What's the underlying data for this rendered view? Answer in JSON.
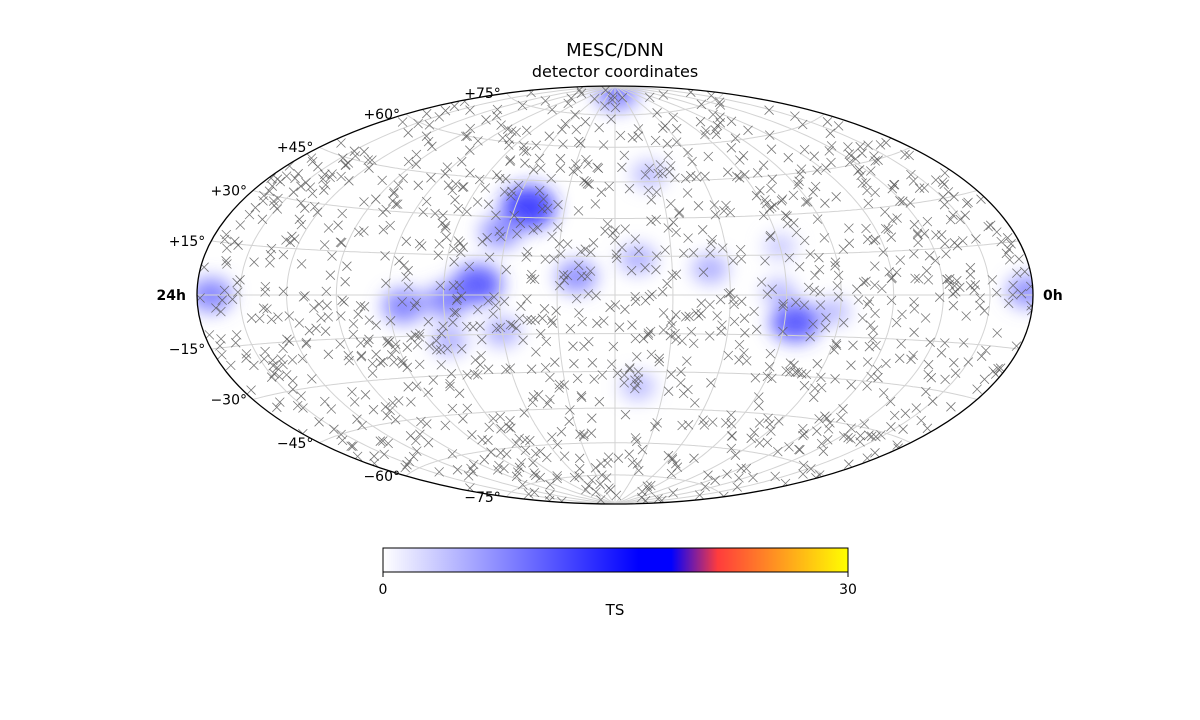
{
  "chart_data": {
    "type": "scatter",
    "projection": "Hammer-Aitoff sky map",
    "title": "MESC/DNN",
    "subtitle": "detector coordinates",
    "ra_labels": {
      "left": "24h",
      "right": "0h"
    },
    "dec_ticks": [
      {
        "dec": 75,
        "label": "+75°"
      },
      {
        "dec": 60,
        "label": "+60°"
      },
      {
        "dec": 45,
        "label": "+45°"
      },
      {
        "dec": 30,
        "label": "+30°"
      },
      {
        "dec": 15,
        "label": "+15°"
      },
      {
        "dec": -15,
        "label": "−15°"
      },
      {
        "dec": -30,
        "label": "−30°"
      },
      {
        "dec": -45,
        "label": "−45°"
      },
      {
        "dec": -60,
        "label": "−60°"
      },
      {
        "dec": -75,
        "label": "−75°"
      }
    ],
    "grid": true,
    "grid_color": "#d3d3d3",
    "marker": "x",
    "marker_color": "#555555",
    "events_shown_approx": 1200,
    "ts_hotspots": [
      {
        "ra_h": 14.6,
        "dec": 34,
        "ts": 14
      },
      {
        "ra_h": 15.2,
        "dec": 24,
        "ts": 8
      },
      {
        "ra_h": 15.6,
        "dec": 4,
        "ts": 12
      },
      {
        "ra_h": 16.4,
        "dec": -2,
        "ts": 9
      },
      {
        "ra_h": 17.6,
        "dec": -4,
        "ts": 9
      },
      {
        "ra_h": 23.5,
        "dec": 0,
        "ts": 9
      },
      {
        "ra_h": 13.0,
        "dec": 7,
        "ts": 8
      },
      {
        "ra_h": 16.5,
        "dec": -17,
        "ts": 6
      },
      {
        "ra_h": 15.0,
        "dec": -14,
        "ts": 6
      },
      {
        "ra_h": 9.5,
        "dec": 10,
        "ts": 6
      },
      {
        "ra_h": 7.2,
        "dec": -10,
        "ts": 12
      },
      {
        "ra_h": 6.2,
        "dec": -6,
        "ts": 5
      },
      {
        "ra_h": 7.7,
        "dec": 1,
        "ts": 5
      },
      {
        "ra_h": 0.2,
        "dec": 1,
        "ts": 8
      },
      {
        "ra_h": 11.3,
        "dec": -36,
        "ts": 5
      },
      {
        "ra_h": 10.8,
        "dec": 48,
        "ts": 5
      },
      {
        "ra_h": 11.5,
        "dec": 86,
        "ts": 9
      },
      {
        "ra_h": 7.5,
        "dec": 18,
        "ts": 4
      },
      {
        "ra_h": 11.4,
        "dec": 14,
        "ts": 6
      }
    ],
    "colorbar": {
      "label": "TS",
      "min": 0,
      "max": 30,
      "ticks": [
        "0",
        "30"
      ],
      "stops": [
        {
          "offset": 0.0,
          "color": "#ffffff"
        },
        {
          "offset": 0.55,
          "color": "#0000ff"
        },
        {
          "offset": 0.62,
          "color": "#0000ff"
        },
        {
          "offset": 0.72,
          "color": "#ff3c3c"
        },
        {
          "offset": 1.0,
          "color": "#ffff00"
        }
      ]
    }
  }
}
